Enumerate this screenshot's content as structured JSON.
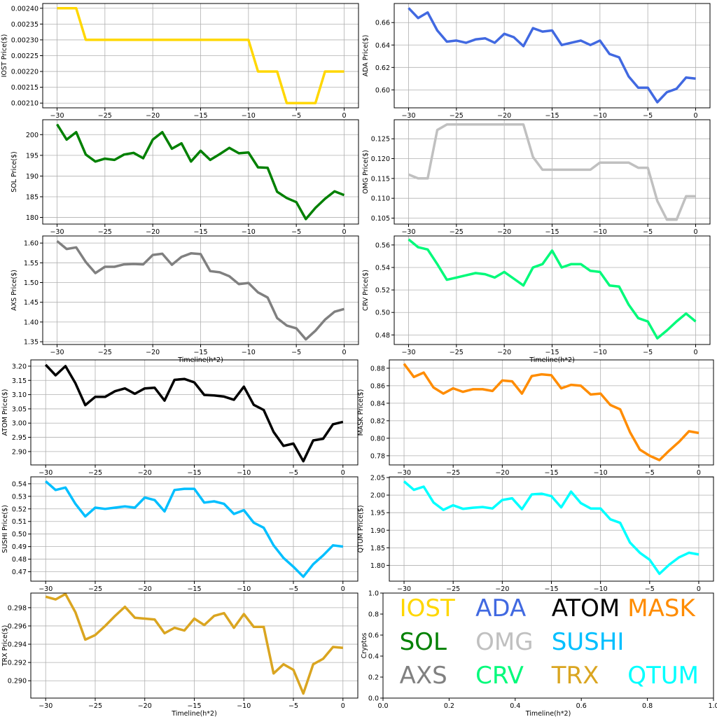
{
  "chart_data": [
    {
      "id": "iost",
      "type": "line",
      "color": "#FFD700",
      "ylabel": "IOST Price($)",
      "xlabel": "",
      "xlim": [
        -31.5,
        1.5
      ],
      "ylim": [
        0.002085,
        0.002415
      ],
      "xticks": [
        -30,
        -25,
        -20,
        -15,
        -10,
        -5,
        0
      ],
      "yticks": [
        0.0021,
        0.00215,
        0.0022,
        0.00225,
        0.0023,
        0.00235,
        0.0024
      ],
      "ytick_labels": [
        "0.00210",
        "0.00215",
        "0.00220",
        "0.00225",
        "0.00230",
        "0.00235",
        "0.00240"
      ],
      "x": [
        -30,
        -29,
        -28,
        -27,
        -26,
        -25,
        -24,
        -23,
        -22,
        -21,
        -20,
        -19,
        -18,
        -17,
        -16,
        -15,
        -14,
        -13,
        -12,
        -11,
        -10,
        -9,
        -8,
        -7,
        -6,
        -5,
        -4,
        -3,
        -2,
        -1,
        0
      ],
      "values": [
        0.0024,
        0.0024,
        0.0024,
        0.0023,
        0.0023,
        0.0023,
        0.0023,
        0.0023,
        0.0023,
        0.0023,
        0.0023,
        0.0023,
        0.0023,
        0.0023,
        0.0023,
        0.0023,
        0.0023,
        0.0023,
        0.0023,
        0.0023,
        0.0023,
        0.0022,
        0.0022,
        0.0022,
        0.0021,
        0.0021,
        0.0021,
        0.0021,
        0.0022,
        0.0022,
        0.0022
      ]
    },
    {
      "id": "ada",
      "type": "line",
      "color": "#4169E1",
      "ylabel": "ADA  Price($)",
      "xlabel": "",
      "xlim": [
        -31.5,
        1.5
      ],
      "ylim": [
        0.584,
        0.677
      ],
      "xticks": [
        -30,
        -25,
        -20,
        -15,
        -10,
        -5,
        0
      ],
      "yticks": [
        0.6,
        0.62,
        0.64,
        0.66
      ],
      "ytick_labels": [
        "0.60",
        "0.62",
        "0.64",
        "0.66"
      ],
      "x": [
        -30,
        -29,
        -28,
        -27,
        -26,
        -25,
        -24,
        -23,
        -22,
        -21,
        -20,
        -19,
        -18,
        -17,
        -16,
        -15,
        -14,
        -13,
        -12,
        -11,
        -10,
        -9,
        -8,
        -7,
        -6,
        -5,
        -4,
        -3,
        -2,
        -1,
        0
      ],
      "values": [
        0.673,
        0.664,
        0.669,
        0.653,
        0.643,
        0.644,
        0.642,
        0.645,
        0.646,
        0.642,
        0.65,
        0.647,
        0.639,
        0.655,
        0.652,
        0.653,
        0.64,
        0.642,
        0.644,
        0.64,
        0.644,
        0.632,
        0.629,
        0.612,
        0.602,
        0.602,
        0.589,
        0.598,
        0.601,
        0.611,
        0.61
      ]
    },
    {
      "id": "sol",
      "type": "line",
      "color": "#008000",
      "ylabel": "SOL Price($)",
      "xlabel": "",
      "xlim": [
        -31.5,
        1.5
      ],
      "ylim": [
        178.4,
        203.6
      ],
      "xticks": [
        -30,
        -25,
        -20,
        -15,
        -10,
        -5,
        0
      ],
      "yticks": [
        180,
        185,
        190,
        195,
        200
      ],
      "ytick_labels": [
        "180",
        "185",
        "190",
        "195",
        "200"
      ],
      "x": [
        -30,
        -29,
        -28,
        -27,
        -26,
        -25,
        -24,
        -23,
        -22,
        -21,
        -20,
        -19,
        -18,
        -17,
        -16,
        -15,
        -14,
        -13,
        -12,
        -11,
        -10,
        -9,
        -8,
        -7,
        -6,
        -5,
        -4,
        -3,
        -2,
        -1,
        0
      ],
      "values": [
        202.5,
        198.8,
        200.6,
        195.2,
        193.5,
        194.2,
        193.9,
        195.2,
        195.6,
        194.3,
        198.8,
        200.6,
        196.6,
        197.9,
        193.5,
        196.1,
        193.9,
        195.3,
        196.8,
        195.5,
        195.7,
        192.1,
        192.0,
        186.2,
        184.7,
        183.7,
        179.6,
        182.3,
        184.5,
        186.3,
        185.4
      ]
    },
    {
      "id": "omg",
      "type": "line",
      "color": "#C0C0C0",
      "ylabel": "OMG  Price($)",
      "xlabel": "",
      "xlim": [
        -31.5,
        1.5
      ],
      "ylim": [
        0.1035,
        0.1298
      ],
      "xticks": [
        -30,
        -25,
        -20,
        -15,
        -10,
        -5,
        0
      ],
      "yticks": [
        0.105,
        0.11,
        0.115,
        0.12,
        0.125
      ],
      "ytick_labels": [
        "0.105",
        "0.110",
        "0.115",
        "0.120",
        "0.125"
      ],
      "x": [
        -30,
        -29,
        -28,
        -27,
        -26,
        -25,
        -24,
        -23,
        -22,
        -21,
        -20,
        -19,
        -18,
        -17,
        -16,
        -15,
        -14,
        -13,
        -12,
        -11,
        -10,
        -9,
        -8,
        -7,
        -6,
        -5,
        -4,
        -3,
        -2,
        -1,
        0
      ],
      "values": [
        0.116,
        0.115,
        0.115,
        0.1272,
        0.1286,
        0.1286,
        0.1286,
        0.1286,
        0.1286,
        0.1286,
        0.1286,
        0.1286,
        0.1286,
        0.1204,
        0.1172,
        0.1172,
        0.1172,
        0.1172,
        0.1172,
        0.1172,
        0.119,
        0.119,
        0.119,
        0.119,
        0.1177,
        0.1177,
        0.1093,
        0.1046,
        0.1046,
        0.1105,
        0.1105
      ]
    },
    {
      "id": "axs",
      "type": "line",
      "color": "#808080",
      "ylabel": "AXS  Price($)",
      "xlabel": "Timeline(h*2)",
      "xlim": [
        -31.5,
        1.5
      ],
      "ylim": [
        1.343,
        1.618
      ],
      "xticks": [
        -30,
        -25,
        -20,
        -15,
        -10,
        -5,
        0
      ],
      "yticks": [
        1.35,
        1.4,
        1.45,
        1.5,
        1.55,
        1.6
      ],
      "ytick_labels": [
        "1.35",
        "1.40",
        "1.45",
        "1.50",
        "1.55",
        "1.60"
      ],
      "x": [
        -30,
        -29,
        -28,
        -27,
        -26,
        -25,
        -24,
        -23,
        -22,
        -21,
        -20,
        -19,
        -18,
        -17,
        -16,
        -15,
        -14,
        -13,
        -12,
        -11,
        -10,
        -9,
        -8,
        -7,
        -6,
        -5,
        -4,
        -3,
        -2,
        -1,
        0
      ],
      "values": [
        1.605,
        1.585,
        1.589,
        1.552,
        1.524,
        1.54,
        1.54,
        1.546,
        1.547,
        1.546,
        1.57,
        1.573,
        1.545,
        1.565,
        1.574,
        1.572,
        1.529,
        1.526,
        1.516,
        1.496,
        1.499,
        1.475,
        1.462,
        1.41,
        1.391,
        1.384,
        1.356,
        1.378,
        1.406,
        1.426,
        1.433
      ]
    },
    {
      "id": "crv",
      "type": "line",
      "color": "#00FA7A",
      "ylabel": "CRV  Price($)",
      "xlabel": "Timeline(h*2)",
      "xlim": [
        -31.5,
        1.5
      ],
      "ylim": [
        0.4715,
        0.568
      ],
      "xticks": [
        -30,
        -25,
        -20,
        -15,
        -10,
        -5,
        0
      ],
      "yticks": [
        0.48,
        0.5,
        0.52,
        0.54,
        0.56
      ],
      "ytick_labels": [
        "0.48",
        "0.50",
        "0.52",
        "0.54",
        "0.56"
      ],
      "x": [
        -30,
        -29,
        -28,
        -27,
        -26,
        -25,
        -24,
        -23,
        -22,
        -21,
        -20,
        -19,
        -18,
        -17,
        -16,
        -15,
        -14,
        -13,
        -12,
        -11,
        -10,
        -9,
        -8,
        -7,
        -6,
        -5,
        -4,
        -3,
        -2,
        -1,
        0
      ],
      "values": [
        0.565,
        0.558,
        0.556,
        0.543,
        0.529,
        0.531,
        0.533,
        0.535,
        0.534,
        0.531,
        0.536,
        0.53,
        0.524,
        0.54,
        0.543,
        0.555,
        0.54,
        0.543,
        0.543,
        0.537,
        0.536,
        0.524,
        0.523,
        0.507,
        0.495,
        0.492,
        0.477,
        0.484,
        0.492,
        0.499,
        0.492
      ]
    },
    {
      "id": "atom",
      "type": "line",
      "color": "#000000",
      "ylabel": "ATOM  Price($)",
      "xlabel": "",
      "xlim": [
        -31.5,
        1.5
      ],
      "ylim": [
        2.853,
        3.222
      ],
      "xticks": [
        -30,
        -25,
        -20,
        -15,
        -10,
        -5,
        0
      ],
      "yticks": [
        2.9,
        2.95,
        3.0,
        3.05,
        3.1,
        3.15,
        3.2
      ],
      "ytick_labels": [
        "2.90",
        "2.95",
        "3.00",
        "3.05",
        "3.10",
        "3.15",
        "3.20"
      ],
      "x": [
        -30,
        -29,
        -28,
        -27,
        -26,
        -25,
        -24,
        -23,
        -22,
        -21,
        -20,
        -19,
        -18,
        -17,
        -16,
        -15,
        -14,
        -13,
        -12,
        -11,
        -10,
        -9,
        -8,
        -7,
        -6,
        -5,
        -4,
        -3,
        -2,
        -1,
        0
      ],
      "values": [
        3.205,
        3.168,
        3.2,
        3.14,
        3.063,
        3.092,
        3.092,
        3.112,
        3.122,
        3.103,
        3.122,
        3.124,
        3.079,
        3.152,
        3.155,
        3.143,
        3.099,
        3.097,
        3.093,
        3.082,
        3.128,
        3.064,
        3.046,
        2.969,
        2.92,
        2.928,
        2.866,
        2.939,
        2.945,
        2.996,
        3.004
      ]
    },
    {
      "id": "mask",
      "type": "line",
      "color": "#FF8C00",
      "ylabel": "MASK  Price($)",
      "xlabel": "",
      "xlim": [
        -31.5,
        1.5
      ],
      "ylim": [
        0.7695,
        0.8895
      ],
      "xticks": [
        -30,
        -25,
        -20,
        -15,
        -10,
        -5,
        0
      ],
      "yticks": [
        0.78,
        0.8,
        0.82,
        0.84,
        0.86,
        0.88
      ],
      "ytick_labels": [
        "0.78",
        "0.80",
        "0.82",
        "0.84",
        "0.86",
        "0.88"
      ],
      "x": [
        -30,
        -29,
        -28,
        -27,
        -26,
        -25,
        -24,
        -23,
        -22,
        -21,
        -20,
        -19,
        -18,
        -17,
        -16,
        -15,
        -14,
        -13,
        -12,
        -11,
        -10,
        -9,
        -8,
        -7,
        -6,
        -5,
        -4,
        -3,
        -2,
        -1,
        0
      ],
      "values": [
        0.885,
        0.87,
        0.875,
        0.858,
        0.851,
        0.857,
        0.853,
        0.856,
        0.856,
        0.854,
        0.866,
        0.865,
        0.851,
        0.871,
        0.873,
        0.872,
        0.857,
        0.861,
        0.86,
        0.85,
        0.851,
        0.838,
        0.833,
        0.807,
        0.787,
        0.78,
        0.775,
        0.786,
        0.796,
        0.808,
        0.806
      ]
    },
    {
      "id": "sushi",
      "type": "line",
      "color": "#00BFFF",
      "ylabel": "SUSHI  Price($)",
      "xlabel": "",
      "xlim": [
        -31.5,
        1.5
      ],
      "ylim": [
        0.4625,
        0.5455
      ],
      "xticks": [
        -30,
        -25,
        -20,
        -15,
        -10,
        -5,
        0
      ],
      "yticks": [
        0.47,
        0.48,
        0.49,
        0.5,
        0.51,
        0.52,
        0.53,
        0.54
      ],
      "ytick_labels": [
        "0.47",
        "0.48",
        "0.49",
        "0.50",
        "0.51",
        "0.52",
        "0.53",
        "0.54"
      ],
      "x": [
        -30,
        -29,
        -28,
        -27,
        -26,
        -25,
        -24,
        -23,
        -22,
        -21,
        -20,
        -19,
        -18,
        -17,
        -16,
        -15,
        -14,
        -13,
        -12,
        -11,
        -10,
        -9,
        -8,
        -7,
        -6,
        -5,
        -4,
        -3,
        -2,
        -1,
        0
      ],
      "values": [
        0.542,
        0.535,
        0.537,
        0.524,
        0.514,
        0.521,
        0.52,
        0.521,
        0.522,
        0.521,
        0.529,
        0.527,
        0.518,
        0.535,
        0.536,
        0.536,
        0.525,
        0.526,
        0.524,
        0.516,
        0.519,
        0.509,
        0.505,
        0.491,
        0.481,
        0.474,
        0.466,
        0.476,
        0.483,
        0.491,
        0.49
      ]
    },
    {
      "id": "qtum",
      "type": "line",
      "color": "#00FFFF",
      "ylabel": "QTUM Price($)",
      "xlabel": "",
      "xlim": [
        -31.5,
        1.5
      ],
      "ylim": [
        1.755,
        2.052
      ],
      "xticks": [
        -30,
        -25,
        -20,
        -15,
        -10,
        -5,
        0
      ],
      "yticks": [
        1.8,
        1.85,
        1.9,
        1.95,
        2.0,
        2.05
      ],
      "ytick_labels": [
        "1.80",
        "1.85",
        "1.90",
        "1.95",
        "2.00",
        "2.05"
      ],
      "x": [
        -30,
        -29,
        -28,
        -27,
        -26,
        -25,
        -24,
        -23,
        -22,
        -21,
        -20,
        -19,
        -18,
        -17,
        -16,
        -15,
        -14,
        -13,
        -12,
        -11,
        -10,
        -9,
        -8,
        -7,
        -6,
        -5,
        -4,
        -3,
        -2,
        -1,
        0
      ],
      "values": [
        2.039,
        2.015,
        2.024,
        1.979,
        1.958,
        1.971,
        1.961,
        1.964,
        1.966,
        1.962,
        1.986,
        1.991,
        1.96,
        2.002,
        2.004,
        1.997,
        1.965,
        2.01,
        1.977,
        1.962,
        1.962,
        1.931,
        1.921,
        1.865,
        1.836,
        1.816,
        1.776,
        1.802,
        1.823,
        1.836,
        1.831
      ]
    },
    {
      "id": "trx",
      "type": "line",
      "color": "#DAA520",
      "ylabel": "TRX  Price($)",
      "xlabel": "Timeline(h*2)",
      "xlim": [
        -31.5,
        1.5
      ],
      "ylim": [
        0.2881,
        0.2996
      ],
      "xticks": [
        -30,
        -25,
        -20,
        -15,
        -10,
        -5,
        0
      ],
      "yticks": [
        0.29,
        0.292,
        0.294,
        0.296,
        0.298
      ],
      "ytick_labels": [
        "0.290",
        "0.292",
        "0.294",
        "0.296",
        "0.298"
      ],
      "x": [
        -30,
        -29,
        -28,
        -27,
        -26,
        -25,
        -24,
        -23,
        -22,
        -21,
        -20,
        -19,
        -18,
        -17,
        -16,
        -15,
        -14,
        -13,
        -12,
        -11,
        -10,
        -9,
        -8,
        -7,
        -6,
        -5,
        -4,
        -3,
        -2,
        -1,
        0
      ],
      "values": [
        0.2992,
        0.2989,
        0.2995,
        0.2975,
        0.2945,
        0.295,
        0.296,
        0.2971,
        0.2981,
        0.2969,
        0.2968,
        0.2967,
        0.2952,
        0.2958,
        0.2955,
        0.2968,
        0.2961,
        0.2971,
        0.2974,
        0.2958,
        0.2973,
        0.2959,
        0.2959,
        0.2908,
        0.2918,
        0.2912,
        0.2886,
        0.2918,
        0.2924,
        0.2937,
        0.2936
      ]
    },
    {
      "id": "legend",
      "type": "text",
      "ylabel": "Cryptos",
      "xlabel": "Timeline(h*2)",
      "xlim": [
        0,
        1
      ],
      "ylim": [
        0,
        1
      ],
      "xticks": [
        0,
        0.2,
        0.4,
        0.6,
        0.8,
        1.0
      ],
      "xtick_labels": [
        "0.0",
        "0.2",
        "0.4",
        "0.6",
        "0.8",
        "1.0"
      ],
      "yticks": [
        0,
        0.2,
        0.4,
        0.6,
        0.8,
        1.0
      ],
      "ytick_labels": [
        "0.0",
        "0.2",
        "0.4",
        "0.6",
        "0.8",
        "1.0"
      ],
      "labels": [
        {
          "text": "IOST",
          "color": "#FFD700",
          "x": 0.05,
          "y": 0.78
        },
        {
          "text": "ADA",
          "color": "#4169E1",
          "x": 0.28,
          "y": 0.78
        },
        {
          "text": "ATOM",
          "color": "#000000",
          "x": 0.51,
          "y": 0.78
        },
        {
          "text": "MASK",
          "color": "#FF8C00",
          "x": 0.74,
          "y": 0.78
        },
        {
          "text": "SOL",
          "color": "#008000",
          "x": 0.05,
          "y": 0.46
        },
        {
          "text": "OMG",
          "color": "#C0C0C0",
          "x": 0.28,
          "y": 0.46
        },
        {
          "text": "SUSHI",
          "color": "#00BFFF",
          "x": 0.51,
          "y": 0.46
        },
        {
          "text": "AXS",
          "color": "#808080",
          "x": 0.05,
          "y": 0.14
        },
        {
          "text": "CRV",
          "color": "#00FA7A",
          "x": 0.28,
          "y": 0.14
        },
        {
          "text": "TRX",
          "color": "#DAA520",
          "x": 0.51,
          "y": 0.14
        },
        {
          "text": "QTUM",
          "color": "#00FFFF",
          "x": 0.74,
          "y": 0.14
        }
      ]
    }
  ]
}
